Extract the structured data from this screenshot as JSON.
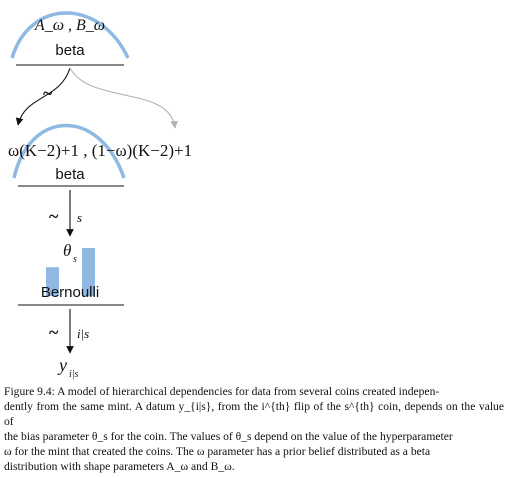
{
  "diagram": {
    "colors": {
      "accent": "#8fb8e3",
      "line": "#111111",
      "secondary_arrow": "#b3b3b3"
    },
    "top_node": {
      "params": "A_ω , B_ω",
      "dist": "beta",
      "relation": "~"
    },
    "middle_node": {
      "params": "ω(K−2)+1 , (1−ω)(K−2)+1",
      "dist": "beta",
      "relation": "~",
      "index": "s"
    },
    "theta": {
      "symbol": "θ",
      "sub": "s"
    },
    "bernoulli_node": {
      "dist": "Bernoulli",
      "relation": "~",
      "index": "i|s"
    },
    "y": {
      "symbol": "y",
      "sub": "i|s"
    },
    "bar_heights": [
      0.6,
      1.0
    ]
  },
  "caption": {
    "lines": [
      "Figure 9.4: A model of hierarchical dependencies for data from several coins created indepen-",
      "dently from the same mint. A datum y_{i|s}, from the i^{th} flip of the s^{th} coin, depends on the value of",
      "the bias parameter θ_s for the coin. The values of θ_s depend on the value of the hyperparameter",
      "ω for the mint that created the coins. The ω parameter has a prior belief distributed as a beta",
      "distribution with shape parameters A_ω and B_ω."
    ]
  }
}
